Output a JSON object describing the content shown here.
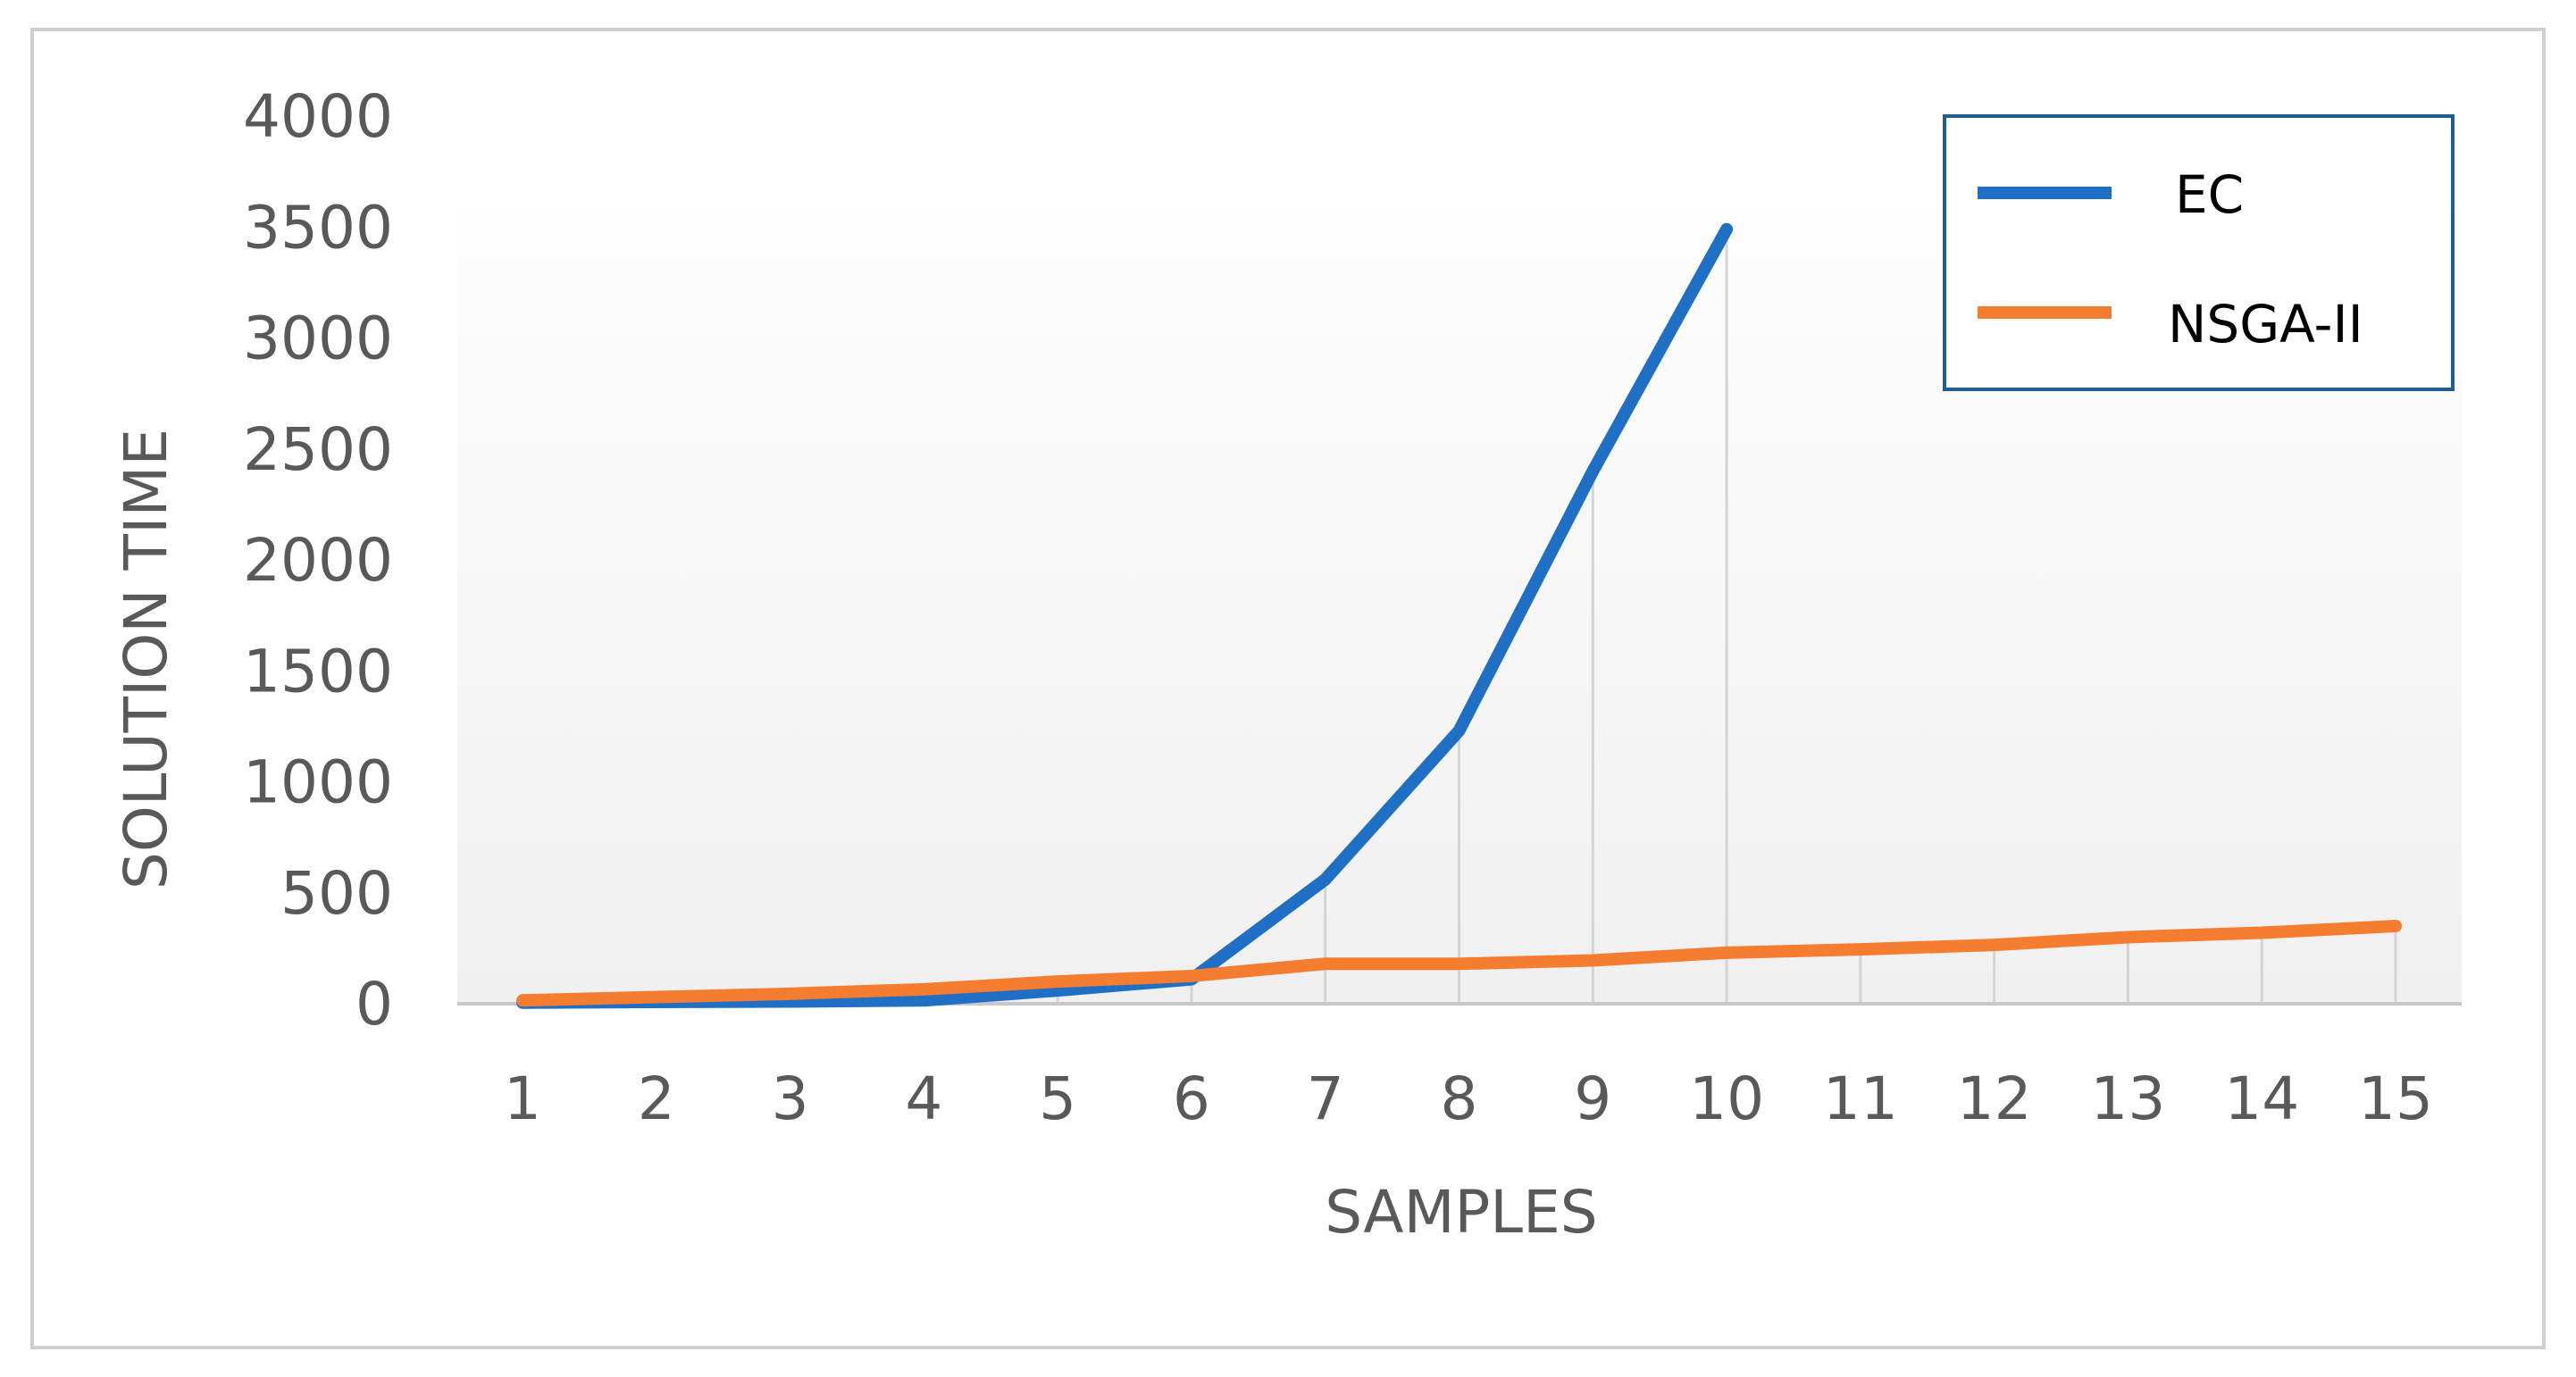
{
  "chart_data": {
    "type": "line",
    "xlabel": "SAMPLES",
    "ylabel": "SOLUTION TIME",
    "categories": [
      "1",
      "2",
      "3",
      "4",
      "5",
      "6",
      "7",
      "8",
      "9",
      "10",
      "11",
      "12",
      "13",
      "14",
      "15"
    ],
    "y_ticks": [
      "0",
      "500",
      "1000",
      "1500",
      "2000",
      "2500",
      "3000",
      "3500",
      "4000"
    ],
    "ylim": [
      0,
      4000
    ],
    "grid": "vertical drop lines at each sample",
    "legend_position": "top-right",
    "series": [
      {
        "name": "EC",
        "color": "#1F6FC5",
        "values": [
          5,
          8,
          10,
          15,
          60,
          110,
          560,
          1230,
          2400,
          3490,
          null,
          null,
          null,
          null,
          null
        ]
      },
      {
        "name": "NSGA-II",
        "color": "#F47D30",
        "values": [
          15,
          30,
          45,
          65,
          100,
          125,
          180,
          180,
          195,
          230,
          245,
          265,
          300,
          320,
          350
        ]
      }
    ]
  }
}
